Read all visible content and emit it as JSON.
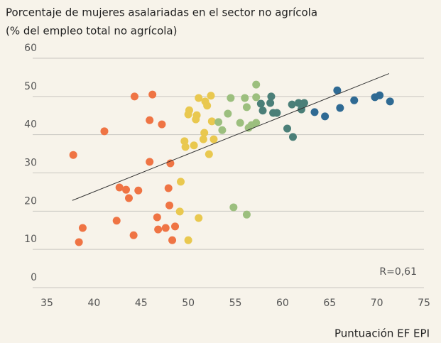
{
  "chart_data": {
    "type": "scatter",
    "title": [
      "Porcentaje de mujeres asalariadas en el sector no agrícola",
      "(% del empleo total no agrícola)"
    ],
    "x_label": "Puntuación EF EPI",
    "annotation": "R=0,61",
    "xlim": [
      35,
      75
    ],
    "xticks": [
      35,
      40,
      45,
      50,
      55,
      60,
      65,
      70,
      75
    ],
    "ylim": [
      0,
      60
    ],
    "yticks": [
      0,
      10,
      20,
      30,
      40,
      50,
      60
    ],
    "grid": true,
    "trendline": {
      "x": [
        37.7,
        71.3
      ],
      "y": [
        22.8,
        56
      ]
    },
    "series": [
      {
        "color": "#ef7444",
        "x": [
          37.8,
          38.4,
          38.8,
          41.1,
          42.4,
          42.7,
          43.4,
          43.7,
          44.3,
          44.2,
          44.7,
          45.9,
          45.9,
          46.2,
          46.7,
          46.8,
          47.2,
          47.6,
          47.9,
          48.0,
          48.1,
          48.3,
          48.6
        ],
        "y": [
          34.7,
          11.9,
          15.6,
          40.9,
          17.5,
          26.2,
          25.6,
          23.4,
          50.0,
          13.7,
          25.4,
          43.8,
          32.9,
          50.5,
          18.4,
          15.2,
          42.7,
          15.6,
          26.0,
          21.5,
          32.5,
          12.4,
          16.0
        ]
      },
      {
        "color": "#e9c84f",
        "x": [
          51.1,
          52.4,
          50.1,
          50.0,
          50.9,
          50.8,
          51.8,
          52.0,
          52.5,
          51.7,
          51.6,
          52.7,
          49.6,
          49.7,
          50.6,
          52.2,
          49.2,
          49.1,
          51.1,
          50.0
        ],
        "y": [
          49.6,
          50.2,
          46.4,
          45.3,
          45.1,
          44.0,
          48.7,
          47.6,
          43.5,
          40.5,
          38.8,
          38.8,
          38.3,
          36.8,
          37.2,
          34.9,
          27.7,
          19.9,
          18.2,
          12.4
        ]
      },
      {
        "color": "#9cbf7e",
        "x": [
          57.2,
          54.5,
          56.0,
          57.2,
          56.2,
          54.2,
          53.2,
          53.6,
          55.5,
          56.4,
          56.7,
          57.2,
          54.8,
          56.2
        ],
        "y": [
          53.1,
          49.6,
          49.6,
          49.8,
          47.2,
          45.5,
          43.3,
          41.2,
          43.1,
          41.8,
          42.5,
          43.1,
          21.0,
          19.1
        ]
      },
      {
        "color": "#4b7f78",
        "x": [
          58.8,
          57.7,
          58.7,
          57.9,
          59.0,
          59.4,
          61.0,
          61.7,
          62.3,
          62.0,
          60.5,
          61.1
        ],
        "y": [
          50.0,
          48.1,
          48.3,
          46.3,
          45.7,
          45.7,
          47.9,
          48.3,
          48.3,
          46.6,
          41.6,
          39.4
        ]
      },
      {
        "color": "#2f6a93",
        "x": [
          63.4,
          64.5,
          65.8,
          66.1,
          67.6,
          69.8,
          70.3,
          71.4
        ],
        "y": [
          45.9,
          44.8,
          51.6,
          47.0,
          49.0,
          49.8,
          50.3,
          48.7
        ]
      }
    ]
  }
}
